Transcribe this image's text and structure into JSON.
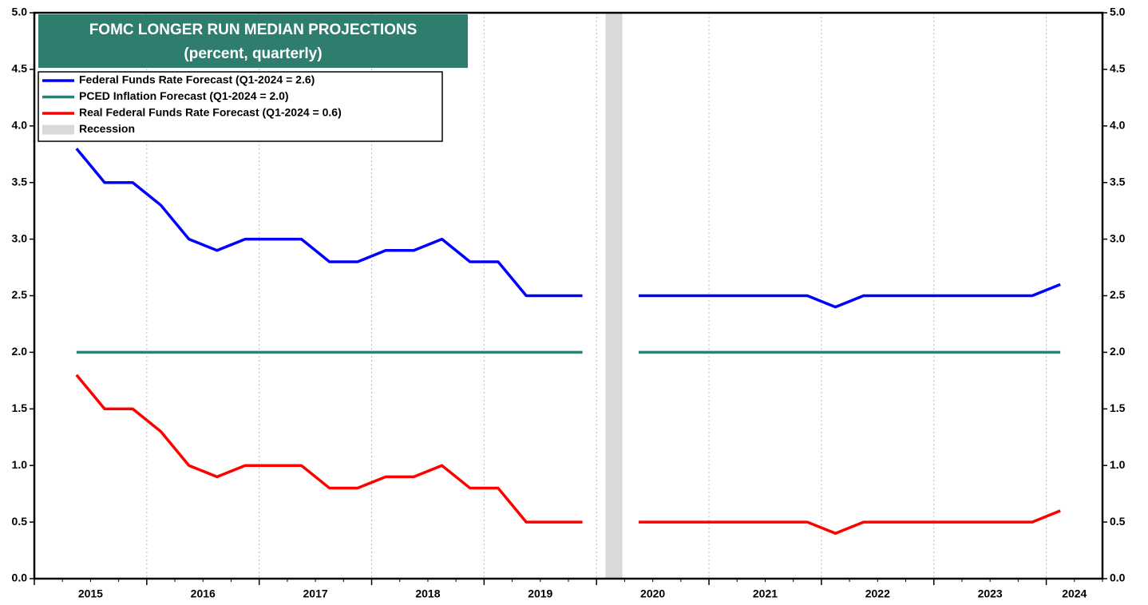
{
  "chart_data": {
    "type": "line",
    "title": "FOMC LONGER RUN MEDIAN PROJECTIONS",
    "subtitle": "(percent, quarterly)",
    "x": [
      2015.375,
      2015.625,
      2015.875,
      2016.125,
      2016.375,
      2016.625,
      2016.875,
      2017.125,
      2017.375,
      2017.625,
      2017.875,
      2018.125,
      2018.375,
      2018.625,
      2018.875,
      2019.125,
      2019.375,
      2019.625,
      2019.875,
      2020.125,
      2020.375,
      2020.625,
      2020.875,
      2021.125,
      2021.375,
      2021.625,
      2021.875,
      2022.125,
      2022.375,
      2022.625,
      2022.875,
      2023.125,
      2023.375,
      2023.625,
      2023.875,
      2024.125
    ],
    "series": [
      {
        "name": "Federal Funds Rate Forecast (Q1-2024 = 2.6)",
        "color": "#0000ff",
        "values": [
          3.8,
          3.5,
          3.5,
          3.3,
          3.0,
          2.9,
          3.0,
          3.0,
          3.0,
          2.8,
          2.8,
          2.9,
          2.9,
          3.0,
          2.8,
          2.8,
          2.5,
          2.5,
          2.5,
          null,
          2.5,
          2.5,
          2.5,
          2.5,
          2.5,
          2.5,
          2.5,
          2.4,
          2.5,
          2.5,
          2.5,
          2.5,
          2.5,
          2.5,
          2.5,
          2.6
        ]
      },
      {
        "name": "PCED Inflation Forecast (Q1-2024 = 2.0)",
        "color": "#2e7f74",
        "values": [
          2.0,
          2.0,
          2.0,
          2.0,
          2.0,
          2.0,
          2.0,
          2.0,
          2.0,
          2.0,
          2.0,
          2.0,
          2.0,
          2.0,
          2.0,
          2.0,
          2.0,
          2.0,
          2.0,
          null,
          2.0,
          2.0,
          2.0,
          2.0,
          2.0,
          2.0,
          2.0,
          2.0,
          2.0,
          2.0,
          2.0,
          2.0,
          2.0,
          2.0,
          2.0,
          2.0
        ]
      },
      {
        "name": "Real Federal Funds Rate Forecast (Q1-2024 = 0.6)",
        "color": "#ff0000",
        "values": [
          1.8,
          1.5,
          1.5,
          1.3,
          1.0,
          0.9,
          1.0,
          1.0,
          1.0,
          0.8,
          0.8,
          0.9,
          0.9,
          1.0,
          0.8,
          0.8,
          0.5,
          0.5,
          0.5,
          null,
          0.5,
          0.5,
          0.5,
          0.5,
          0.5,
          0.5,
          0.5,
          0.4,
          0.5,
          0.5,
          0.5,
          0.5,
          0.5,
          0.5,
          0.5,
          0.6
        ]
      }
    ],
    "recession": {
      "name": "Recession",
      "start": 2020.08,
      "end": 2020.23,
      "color": "#d9d9d9"
    },
    "xlim": [
      2015,
      2024.5
    ],
    "xticks": [
      {
        "value": 2015,
        "label": "2015"
      },
      {
        "value": 2016,
        "label": "2016"
      },
      {
        "value": 2017,
        "label": "2017"
      },
      {
        "value": 2018,
        "label": "2018"
      },
      {
        "value": 2019,
        "label": "2019"
      },
      {
        "value": 2020,
        "label": "2020"
      },
      {
        "value": 2021,
        "label": "2021"
      },
      {
        "value": 2022,
        "label": "2022"
      },
      {
        "value": 2023,
        "label": "2023"
      },
      {
        "value": 2024,
        "label": "2024"
      }
    ],
    "ylim": [
      0,
      5
    ],
    "yticks": [
      {
        "value": 0,
        "label": "0.0"
      },
      {
        "value": 0.5,
        "label": "0.5"
      },
      {
        "value": 1,
        "label": "1.0"
      },
      {
        "value": 1.5,
        "label": "1.5"
      },
      {
        "value": 2,
        "label": "2.0"
      },
      {
        "value": 2.5,
        "label": "2.5"
      },
      {
        "value": 3,
        "label": "3.0"
      },
      {
        "value": 3.5,
        "label": "3.5"
      },
      {
        "value": 4,
        "label": "4.0"
      },
      {
        "value": 4.5,
        "label": "4.5"
      },
      {
        "value": 5,
        "label": "5.0"
      }
    ],
    "grid": true
  }
}
